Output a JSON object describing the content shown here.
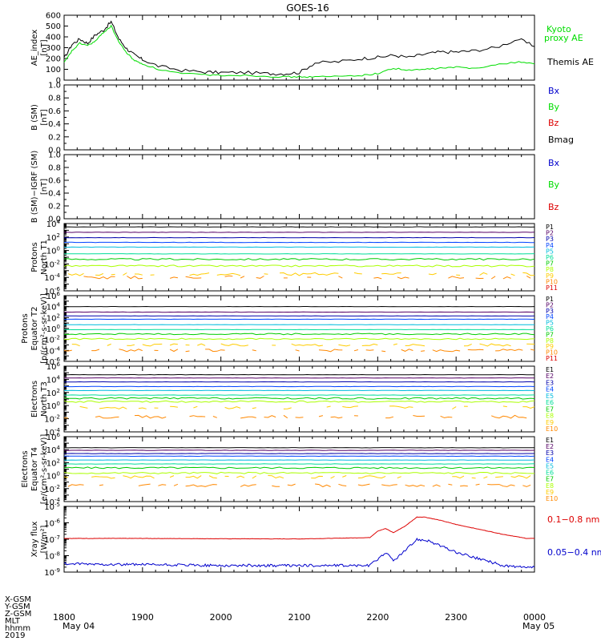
{
  "title": "GOES-16",
  "colors": {
    "black": "#000000",
    "green": "#00dd00",
    "red": "#dd0000",
    "blue": "#0000cc",
    "p_colors": [
      "#000000",
      "#550066",
      "#0000aa",
      "#0044ff",
      "#00bbdd",
      "#00dd99",
      "#00cc00",
      "#aaff00",
      "#ffcc00",
      "#ff8800",
      "#dd0000"
    ],
    "e_colors": [
      "#000000",
      "#550066",
      "#0000aa",
      "#0044ff",
      "#00bbdd",
      "#00dd99",
      "#00cc00",
      "#aaff00",
      "#ffcc00",
      "#ff8800"
    ]
  },
  "x_axis": {
    "ticks": [
      "1800",
      "1900",
      "2000",
      "2100",
      "2200",
      "2300",
      "0000"
    ],
    "date_left": "May 04",
    "date_right": "May 05",
    "row_labels": [
      "X-GSM",
      "Y-GSM",
      "Z-GSM",
      "MLT",
      "hhmm",
      "2019"
    ]
  },
  "chart_data": [
    {
      "type": "line",
      "ylabel": [
        "AE_index",
        "[nT]"
      ],
      "ylim": [
        0,
        600
      ],
      "yticks": [
        "0",
        "100",
        "200",
        "300",
        "400",
        "500",
        "600"
      ],
      "x_hours": [
        18.0,
        18.1,
        18.2,
        18.3,
        18.4,
        18.5,
        18.6,
        18.7,
        18.8,
        18.9,
        19.0,
        19.2,
        19.5,
        19.8,
        20.0,
        20.3,
        20.6,
        20.8,
        21.0,
        21.2,
        21.5,
        21.8,
        22.0,
        22.2,
        22.4,
        22.6,
        22.8,
        23.0,
        23.2,
        23.5,
        23.8,
        24.0
      ],
      "series": [
        {
          "name": "Themis AE",
          "color": "black",
          "values": [
            200,
            330,
            380,
            340,
            420,
            460,
            540,
            380,
            290,
            230,
            190,
            130,
            90,
            75,
            70,
            70,
            60,
            60,
            70,
            160,
            170,
            200,
            210,
            230,
            210,
            240,
            260,
            260,
            270,
            300,
            380,
            310
          ]
        },
        {
          "name": "Kyoto proxy AE",
          "color": "green",
          "values": [
            160,
            270,
            340,
            320,
            360,
            440,
            500,
            350,
            250,
            180,
            150,
            100,
            60,
            50,
            45,
            45,
            35,
            30,
            30,
            30,
            35,
            45,
            60,
            110,
            90,
            100,
            110,
            120,
            110,
            140,
            170,
            150
          ]
        }
      ],
      "legend": [
        "Kyoto",
        "proxy AE",
        "Themis AE"
      ]
    },
    {
      "type": "line",
      "ylabel": [
        "B (SM)",
        "[nT]"
      ],
      "ylim": [
        0,
        1
      ],
      "yticks": [
        "0.0",
        "0.2",
        "0.4",
        "0.6",
        "0.8",
        "1.0"
      ],
      "series": [],
      "legend": [
        "Bx",
        "By",
        "Bz",
        "Bmag"
      ]
    },
    {
      "type": "line",
      "ylabel": [
        "B (SM)−IGRF (SM)",
        "[nT]"
      ],
      "ylim": [
        0,
        1
      ],
      "yticks": [
        "0.0",
        "0.2",
        "0.4",
        "0.6",
        "0.8",
        "1.0"
      ],
      "series": [],
      "legend": [
        "Bx",
        "By",
        "Bz"
      ]
    },
    {
      "type": "line",
      "yscale": "log",
      "ylabel": [
        "Protons",
        "North T1"
      ],
      "ylim": [
        -6,
        4
      ],
      "yticks": [
        4,
        2,
        0,
        -2,
        -4,
        -6
      ],
      "levels": [
        3.5,
        2.7,
        1.9,
        1.2,
        0.5,
        -0.5,
        -1.3,
        -2.3,
        -3.5,
        -4.0
      ],
      "legend": [
        "P1",
        "P2",
        "P3",
        "P4",
        "P5",
        "P6",
        "P7",
        "P8",
        "P9",
        "P10",
        "P11"
      ]
    },
    {
      "type": "line",
      "yscale": "log",
      "ylabel": [
        "Protons",
        "Equator T2",
        "[p/(cm²-s-sr-keV)]"
      ],
      "ylim": [
        -6,
        6
      ],
      "yticks": [
        6,
        4,
        2,
        0,
        -2,
        -4,
        -6
      ],
      "levels": [
        4.0,
        3.0,
        2.3,
        1.7,
        0.7,
        -0.2,
        -1.0,
        -1.9,
        -3.0,
        -4.0
      ],
      "legend": [
        "P1",
        "P2",
        "P3",
        "P4",
        "P5",
        "P6",
        "P7",
        "P8",
        "P9",
        "P10",
        "P11"
      ]
    },
    {
      "type": "line",
      "yscale": "log",
      "ylabel": [
        "Electrons",
        "North T3"
      ],
      "ylim": [
        -4,
        6
      ],
      "yticks": [
        6,
        4,
        2,
        0,
        -2,
        -4
      ],
      "levels": [
        4.7,
        4.2,
        3.6,
        2.9,
        2.3,
        1.6,
        1.1,
        0.6,
        -0.3,
        -1.7
      ],
      "legend": [
        "E1",
        "E2",
        "E3",
        "E4",
        "E5",
        "E6",
        "E7",
        "E8",
        "E9",
        "E10"
      ]
    },
    {
      "type": "line",
      "yscale": "log",
      "ylabel": [
        "Electrons",
        "Equator T4",
        "[e/(cm²-s-sr-keV)]"
      ],
      "ylim": [
        -4,
        6
      ],
      "yticks": [
        6,
        4,
        2,
        0,
        -2,
        -4
      ],
      "levels": [
        4.3,
        3.9,
        3.4,
        3.0,
        2.4,
        1.8,
        1.2,
        0.4,
        -0.2,
        -1.5
      ],
      "legend": [
        "E1",
        "E2",
        "E3",
        "E4",
        "E5",
        "E6",
        "E7",
        "E8",
        "E9",
        "E10"
      ]
    },
    {
      "type": "line",
      "yscale": "log",
      "ylabel": [
        "Xray flux",
        "[W/m²]"
      ],
      "ylim": [
        -9,
        -5
      ],
      "yticks": [
        -5,
        -6,
        -7,
        -8,
        -9
      ],
      "x_hours": [
        18.0,
        19.0,
        20.0,
        21.0,
        21.9,
        22.0,
        22.1,
        22.2,
        22.35,
        22.5,
        22.6,
        22.7,
        22.8,
        23.0,
        23.3,
        23.6,
        23.9,
        24.0
      ],
      "series": [
        {
          "name": "0.1−0.8 nm",
          "color": "red",
          "values": [
            -6.95,
            -6.95,
            -6.97,
            -6.98,
            -6.9,
            -6.5,
            -6.35,
            -6.6,
            -6.2,
            -5.65,
            -5.65,
            -5.75,
            -5.85,
            -6.1,
            -6.4,
            -6.7,
            -6.95,
            -6.95
          ]
        },
        {
          "name": "0.05−0.4 nm",
          "color": "blue",
          "values": [
            -8.5,
            -8.55,
            -8.6,
            -8.6,
            -8.6,
            -8.2,
            -7.8,
            -8.3,
            -7.7,
            -7.0,
            -7.05,
            -7.2,
            -7.4,
            -7.8,
            -8.2,
            -8.6,
            -8.75,
            -8.7
          ]
        }
      ],
      "legend": [
        "0.1−0.8 nm",
        "0.05−0.4 nm"
      ]
    }
  ]
}
